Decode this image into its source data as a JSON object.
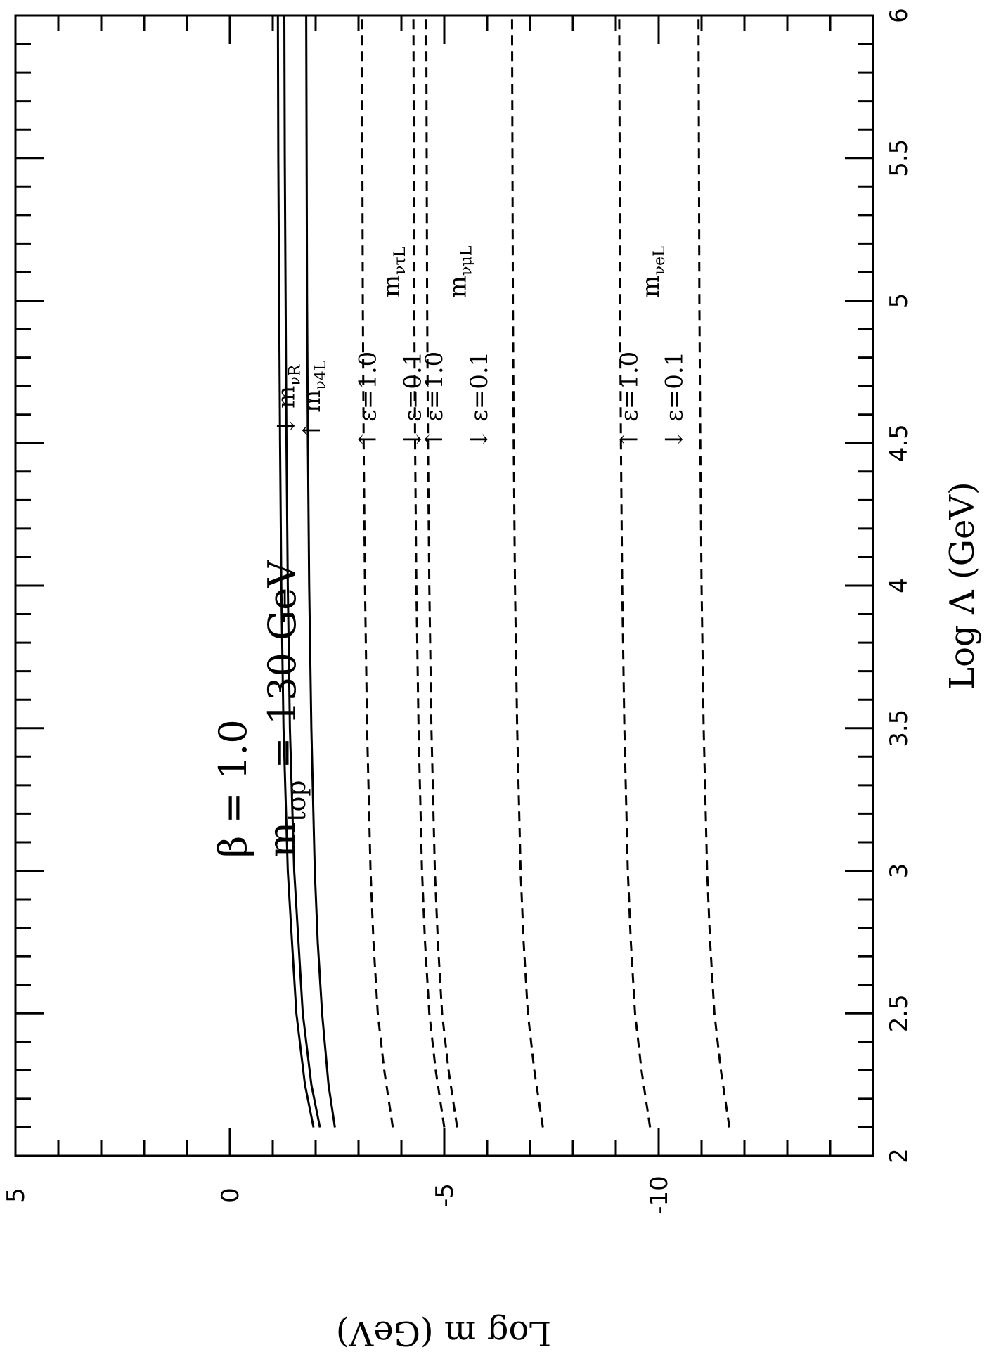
{
  "chart_data": {
    "type": "line",
    "orientation": "rotated-90-clockwise",
    "xlabel": "Log Λ (GeV)",
    "ylabel": "Log m (GeV)",
    "xlim": [
      2,
      6
    ],
    "ylim": [
      -15,
      5
    ],
    "x_ticks": [
      "2",
      "2.5",
      "3",
      "3.5",
      "4",
      "4.5",
      "5",
      "5.5",
      "6"
    ],
    "y_ticks": [
      "5",
      "0",
      "-5",
      "-10"
    ],
    "annotation": {
      "beta_line": "β = 1.0",
      "mtop_symbol": "m",
      "mtop_subscript": "top",
      "mtop_value": "= 130 GeV"
    },
    "series": [
      {
        "name": "m_νR upper",
        "style": "solid",
        "x": [
          2.1,
          2.25,
          2.5,
          2.75,
          3,
          3.5,
          4,
          4.5,
          5,
          5.5,
          6
        ],
        "y": [
          -1.95,
          -1.75,
          -1.55,
          -1.45,
          -1.35,
          -1.25,
          -1.2,
          -1.17,
          -1.15,
          -1.13,
          -1.12
        ]
      },
      {
        "name": "m_νR lower",
        "style": "solid",
        "x": [
          2.1,
          2.25,
          2.5,
          2.75,
          3,
          3.5,
          4,
          4.5,
          5,
          5.5,
          6
        ],
        "y": [
          -2.1,
          -1.9,
          -1.7,
          -1.6,
          -1.5,
          -1.4,
          -1.35,
          -1.32,
          -1.3,
          -1.28,
          -1.27
        ]
      },
      {
        "name": "m_ν4L",
        "style": "solid",
        "x": [
          2.1,
          2.25,
          2.5,
          2.75,
          3,
          3.5,
          4,
          4.5,
          5,
          5.5,
          6
        ],
        "y": [
          -2.45,
          -2.3,
          -2.15,
          -2.05,
          -1.98,
          -1.9,
          -1.85,
          -1.82,
          -1.8,
          -1.79,
          -1.78
        ]
      },
      {
        "name": "m_ντL ε=1.0",
        "style": "dashed",
        "x": [
          2.1,
          2.3,
          2.5,
          2.75,
          3,
          3.5,
          4,
          4.5,
          5,
          5.5,
          6
        ],
        "y": [
          -3.8,
          -3.6,
          -3.45,
          -3.35,
          -3.28,
          -3.2,
          -3.15,
          -3.12,
          -3.1,
          -3.09,
          -3.08
        ]
      },
      {
        "name": "m_ντL ε=0.1",
        "style": "dashed",
        "x": [
          2.1,
          2.3,
          2.5,
          2.75,
          3,
          3.5,
          4,
          4.5,
          5,
          5.5,
          6
        ],
        "y": [
          -5.0,
          -4.8,
          -4.65,
          -4.55,
          -4.48,
          -4.4,
          -4.35,
          -4.32,
          -4.3,
          -4.29,
          -4.28
        ]
      },
      {
        "name": "m_νμL ε=1.0",
        "style": "dashed",
        "x": [
          2.1,
          2.3,
          2.5,
          2.75,
          3,
          3.5,
          4,
          4.5,
          5,
          5.5,
          6
        ],
        "y": [
          -5.3,
          -5.1,
          -4.95,
          -4.85,
          -4.78,
          -4.7,
          -4.65,
          -4.62,
          -4.6,
          -4.59,
          -4.58
        ]
      },
      {
        "name": "m_νμL ε=0.1",
        "style": "dashed",
        "x": [
          2.1,
          2.3,
          2.5,
          2.75,
          3,
          3.5,
          4,
          4.5,
          5,
          5.5,
          6
        ],
        "y": [
          -7.3,
          -7.1,
          -6.95,
          -6.85,
          -6.78,
          -6.7,
          -6.65,
          -6.62,
          -6.6,
          -6.59,
          -6.58
        ]
      },
      {
        "name": "m_νeL ε=1.0",
        "style": "dashed",
        "x": [
          2.1,
          2.3,
          2.5,
          2.75,
          3,
          3.5,
          4,
          4.5,
          5,
          5.5,
          6
        ],
        "y": [
          -9.8,
          -9.6,
          -9.45,
          -9.35,
          -9.28,
          -9.2,
          -9.15,
          -9.12,
          -9.1,
          -9.09,
          -9.08
        ]
      },
      {
        "name": "m_νeL ε=0.1",
        "style": "dashed",
        "x": [
          2.1,
          2.3,
          2.5,
          2.75,
          3,
          3.5,
          4,
          4.5,
          5,
          5.5,
          6
        ],
        "y": [
          -11.65,
          -11.45,
          -11.3,
          -11.2,
          -11.13,
          -11.05,
          -11.0,
          -10.97,
          -10.95,
          -10.94,
          -10.93
        ]
      }
    ],
    "labels": [
      {
        "text": "↓ m",
        "sub": "νR",
        "x": 4.65,
        "y": -1.5
      },
      {
        "text": "↑ m",
        "sub": "ν4L",
        "x": 4.65,
        "y": -2.1
      },
      {
        "text": "↑ ε=1.0",
        "x": 4.65,
        "y": -3.4
      },
      {
        "text": "↓ ε=0.1",
        "x": 4.65,
        "y": -4.45
      },
      {
        "text": "m",
        "sub": "ντL",
        "x": 5.1,
        "y": -3.95
      },
      {
        "text": "↑ ε=1.0",
        "x": 4.65,
        "y": -4.95
      },
      {
        "text": "↓ ε=0.1",
        "x": 4.65,
        "y": -6.0
      },
      {
        "text": "m",
        "sub": "νμL",
        "x": 5.1,
        "y": -5.5
      },
      {
        "text": "↑ ε=1.0",
        "x": 4.65,
        "y": -9.5
      },
      {
        "text": "↓ ε=0.1",
        "x": 4.65,
        "y": -10.55
      },
      {
        "text": "m",
        "sub": "νeL",
        "x": 5.1,
        "y": -10.0
      }
    ]
  }
}
